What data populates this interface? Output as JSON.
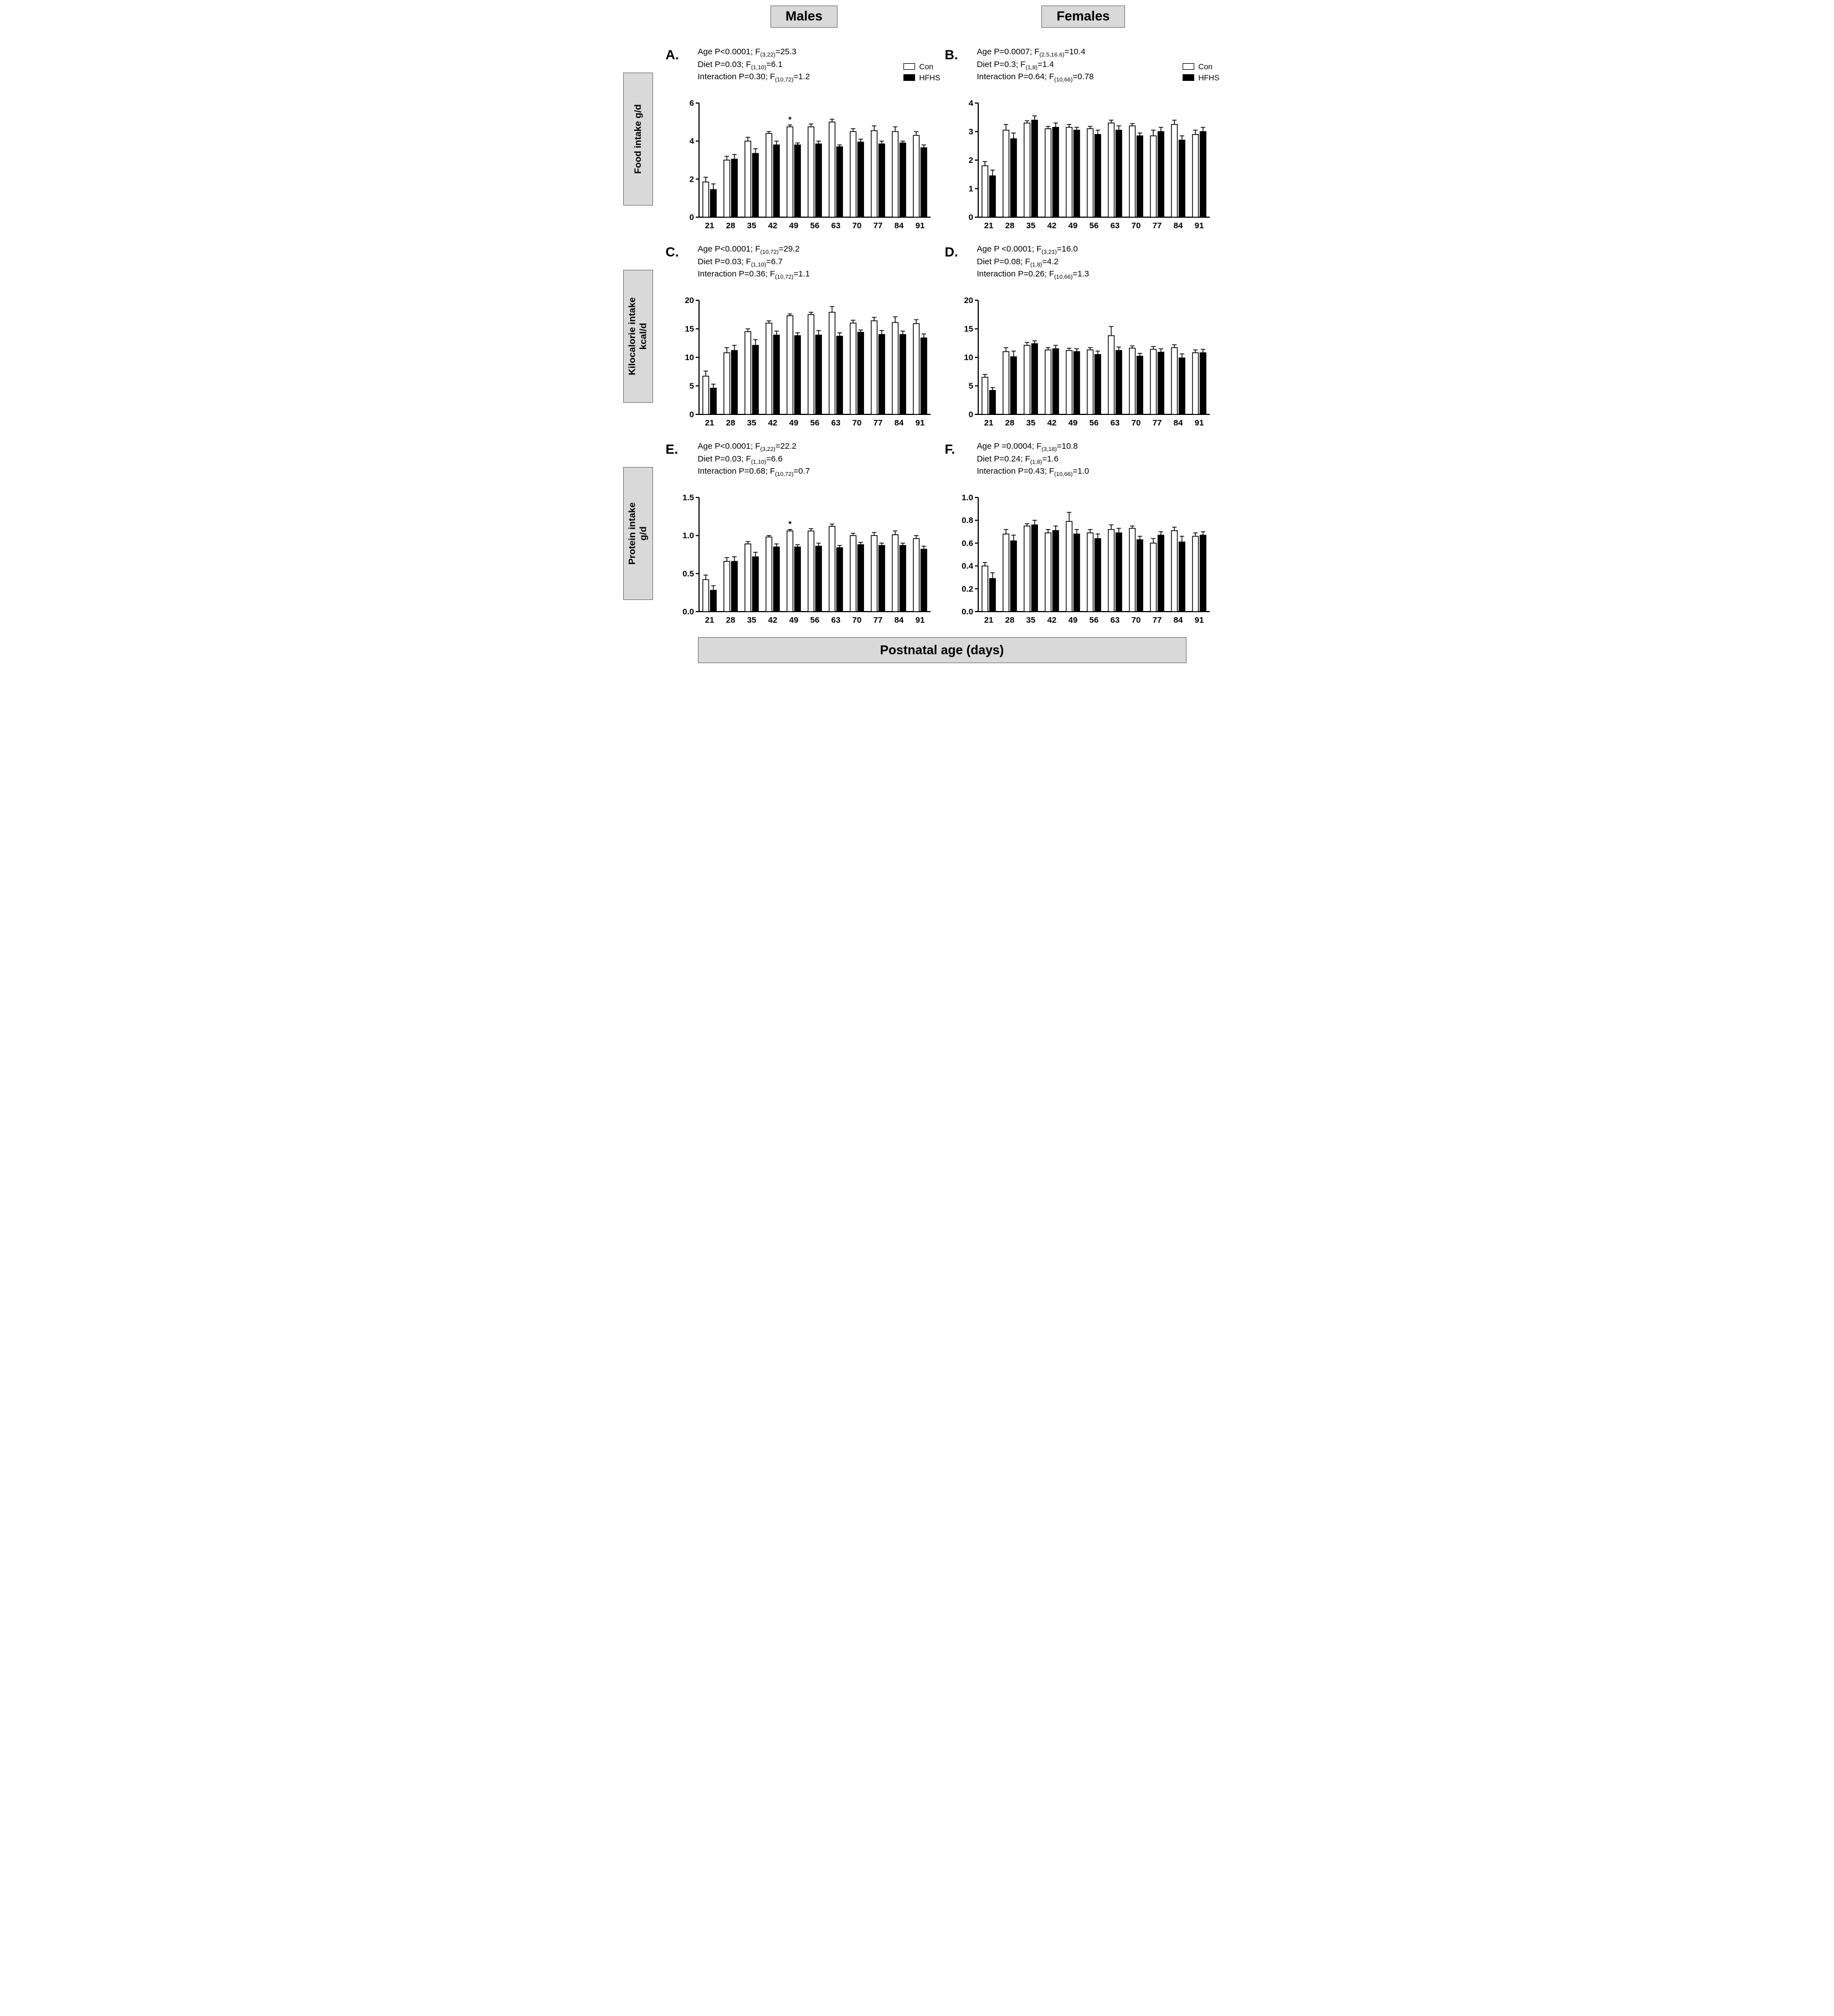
{
  "header": {
    "males_label": "Males",
    "females_label": "Females"
  },
  "footer": {
    "xaxis_label": "Postnatal age (days)"
  },
  "rows": [
    {
      "label_lines": [
        "Food intake g/d",
        ""
      ]
    },
    {
      "label_lines": [
        "Kilocalorie intake",
        "kcal/d"
      ]
    },
    {
      "label_lines": [
        "Protein intake",
        "g/d"
      ]
    }
  ],
  "legend": {
    "items": [
      {
        "label": "Con",
        "color": "#ffffff"
      },
      {
        "label": "HFHS",
        "color": "#000000"
      }
    ]
  },
  "colors": {
    "con_fill": "#ffffff",
    "hfhs_fill": "#000000",
    "bar_stroke": "#000000",
    "label_box_bg": "#d9d9d9",
    "label_box_border": "#6e6e6e"
  },
  "chart_data": [
    {
      "panel": "A.",
      "column": "Males",
      "type": "bar",
      "title": "Males food intake",
      "ylabel": "Food intake g/d",
      "xlabel": "Postnatal age (days)",
      "categories": [
        "21",
        "28",
        "35",
        "42",
        "49",
        "56",
        "63",
        "70",
        "77",
        "84",
        "91"
      ],
      "ylim": [
        0,
        6
      ],
      "ytick_values": [
        0,
        2,
        4,
        6
      ],
      "ytick_labels": [
        "0",
        "2",
        "4",
        "6"
      ],
      "legend_position": "top-right",
      "series": [
        {
          "name": "Con",
          "fill": "#ffffff",
          "values": [
            1.85,
            3.0,
            4.0,
            4.4,
            4.75,
            4.75,
            5.0,
            4.5,
            4.55,
            4.5,
            4.3
          ],
          "errors": [
            0.25,
            0.2,
            0.2,
            0.1,
            0.1,
            0.15,
            0.15,
            0.15,
            0.25,
            0.25,
            0.2
          ]
        },
        {
          "name": "HFHS",
          "fill": "#000000",
          "values": [
            1.45,
            3.05,
            3.35,
            3.8,
            3.8,
            3.85,
            3.7,
            3.95,
            3.85,
            3.9,
            3.65
          ],
          "errors": [
            0.3,
            0.25,
            0.25,
            0.2,
            0.1,
            0.15,
            0.1,
            0.15,
            0.15,
            0.1,
            0.15
          ]
        }
      ],
      "stats": [
        {
          "pre": "Age P<0.0001; F",
          "sub": "(3,22)",
          "post": "=25.3"
        },
        {
          "pre": "Diet P=0.03; F",
          "sub": "(1,10)",
          "post": "=6.1"
        },
        {
          "pre": "Interaction P=0.30; F",
          "sub": "(10,72)",
          "post": "=1.2"
        }
      ],
      "annotations": [
        {
          "series": 0,
          "index": 4,
          "text": "*"
        }
      ]
    },
    {
      "panel": "B.",
      "column": "Females",
      "type": "bar",
      "title": "Females food intake",
      "ylabel": "Food intake g/d",
      "xlabel": "Postnatal age (days)",
      "categories": [
        "21",
        "28",
        "35",
        "42",
        "49",
        "56",
        "63",
        "70",
        "77",
        "84",
        "91"
      ],
      "ylim": [
        0,
        4
      ],
      "ytick_values": [
        0,
        1,
        2,
        3,
        4
      ],
      "ytick_labels": [
        "0",
        "1",
        "2",
        "3",
        "4"
      ],
      "legend_position": "top-right",
      "series": [
        {
          "name": "Con",
          "fill": "#ffffff",
          "values": [
            1.8,
            3.05,
            3.3,
            3.1,
            3.15,
            3.1,
            3.3,
            3.2,
            2.85,
            3.25,
            2.9
          ],
          "errors": [
            0.15,
            0.2,
            0.08,
            0.08,
            0.1,
            0.08,
            0.1,
            0.08,
            0.2,
            0.15,
            0.15
          ]
        },
        {
          "name": "HFHS",
          "fill": "#000000",
          "values": [
            1.45,
            2.75,
            3.4,
            3.15,
            3.05,
            2.9,
            3.05,
            2.85,
            3.0,
            2.7,
            3.0
          ],
          "errors": [
            0.2,
            0.2,
            0.15,
            0.15,
            0.1,
            0.15,
            0.15,
            0.1,
            0.15,
            0.15,
            0.15
          ]
        }
      ],
      "stats": [
        {
          "pre": "Age P=0.0007; F",
          "sub": "(2.5,16.6)",
          "post": "=10.4"
        },
        {
          "pre": "Diet P=0.3; F",
          "sub": "(1,8)",
          "post": "=1.4"
        },
        {
          "pre": "Interaction P=0.64; F",
          "sub": "(10,66)",
          "post": "=0.78"
        }
      ],
      "annotations": []
    },
    {
      "panel": "C.",
      "column": "Males",
      "type": "bar",
      "title": "Males kilocalorie intake",
      "ylabel": "Kilocalorie intake kcal/d",
      "xlabel": "Postnatal age (days)",
      "categories": [
        "21",
        "28",
        "35",
        "42",
        "49",
        "56",
        "63",
        "70",
        "77",
        "84",
        "91"
      ],
      "ylim": [
        0,
        20
      ],
      "ytick_values": [
        0,
        5,
        10,
        15,
        20
      ],
      "ytick_labels": [
        "0",
        "5",
        "10",
        "15",
        "20"
      ],
      "legend_position": "none",
      "series": [
        {
          "name": "Con",
          "fill": "#ffffff",
          "values": [
            6.7,
            10.8,
            14.5,
            16.0,
            17.3,
            17.5,
            17.9,
            16.0,
            16.4,
            16.1,
            15.9
          ],
          "errors": [
            0.9,
            0.9,
            0.5,
            0.4,
            0.3,
            0.4,
            1.0,
            0.5,
            0.6,
            1.0,
            0.7
          ]
        },
        {
          "name": "HFHS",
          "fill": "#000000",
          "values": [
            4.6,
            11.2,
            12.1,
            13.9,
            13.8,
            13.9,
            13.7,
            14.4,
            14.0,
            14.0,
            13.4
          ],
          "errors": [
            0.7,
            0.9,
            1.0,
            0.7,
            0.5,
            0.8,
            0.6,
            0.4,
            0.7,
            0.6,
            0.7
          ]
        }
      ],
      "stats": [
        {
          "pre": "Age P<0.0001; F",
          "sub": "(10,72)",
          "post": "=29.2"
        },
        {
          "pre": "Diet P=0.03; F",
          "sub": "(1,10)",
          "post": "=6.7"
        },
        {
          "pre": "Interaction P=0.36; F",
          "sub": "(10,72)",
          "post": "=1.1"
        }
      ],
      "annotations": []
    },
    {
      "panel": "D.",
      "column": "Females",
      "type": "bar",
      "title": "Females kilocalorie intake",
      "ylabel": "Kilocalorie intake kcal/d",
      "xlabel": "Postnatal age (days)",
      "categories": [
        "21",
        "28",
        "35",
        "42",
        "49",
        "56",
        "63",
        "70",
        "77",
        "84",
        "91"
      ],
      "ylim": [
        0,
        20
      ],
      "ytick_values": [
        0,
        5,
        10,
        15,
        20
      ],
      "ytick_labels": [
        "0",
        "5",
        "10",
        "15",
        "20"
      ],
      "legend_position": "none",
      "series": [
        {
          "name": "Con",
          "fill": "#ffffff",
          "values": [
            6.5,
            11.0,
            12.1,
            11.3,
            11.2,
            11.3,
            13.8,
            11.6,
            11.4,
            11.7,
            10.8
          ],
          "errors": [
            0.5,
            0.7,
            0.5,
            0.4,
            0.4,
            0.4,
            1.6,
            0.4,
            0.5,
            0.5,
            0.5
          ]
        },
        {
          "name": "HFHS",
          "fill": "#000000",
          "values": [
            4.2,
            10.1,
            12.4,
            11.5,
            11.0,
            10.5,
            11.2,
            10.2,
            10.9,
            9.9,
            10.8
          ],
          "errors": [
            0.5,
            1.0,
            0.5,
            0.6,
            0.5,
            0.6,
            0.6,
            0.5,
            0.6,
            0.7,
            0.6
          ]
        }
      ],
      "stats": [
        {
          "pre": "Age P <0.0001; F",
          "sub": "(3,21)",
          "post": "=16.0"
        },
        {
          "pre": "Diet P=0.08; F",
          "sub": "(1,8)",
          "post": "=4.2"
        },
        {
          "pre": "Interaction P=0.26; F",
          "sub": "(10,66)",
          "post": "=1.3"
        }
      ],
      "annotations": []
    },
    {
      "panel": "E.",
      "column": "Males",
      "type": "bar",
      "title": "Males protein intake",
      "ylabel": "Protein intake g/d",
      "xlabel": "Postnatal age (days)",
      "categories": [
        "21",
        "28",
        "35",
        "42",
        "49",
        "56",
        "63",
        "70",
        "77",
        "84",
        "91"
      ],
      "ylim": [
        0,
        1.5
      ],
      "ytick_values": [
        0,
        0.5,
        1.0,
        1.5
      ],
      "ytick_labels": [
        "0.0",
        "0.5",
        "1.0",
        "1.5"
      ],
      "legend_position": "none",
      "series": [
        {
          "name": "Con",
          "fill": "#ffffff",
          "values": [
            0.42,
            0.66,
            0.89,
            0.98,
            1.06,
            1.06,
            1.12,
            1.0,
            1.0,
            1.01,
            0.96
          ],
          "errors": [
            0.06,
            0.05,
            0.03,
            0.02,
            0.02,
            0.03,
            0.03,
            0.03,
            0.04,
            0.05,
            0.04
          ]
        },
        {
          "name": "HFHS",
          "fill": "#000000",
          "values": [
            0.28,
            0.66,
            0.72,
            0.85,
            0.85,
            0.86,
            0.84,
            0.88,
            0.87,
            0.87,
            0.82
          ],
          "errors": [
            0.06,
            0.06,
            0.06,
            0.04,
            0.03,
            0.04,
            0.03,
            0.03,
            0.03,
            0.03,
            0.04
          ]
        }
      ],
      "stats": [
        {
          "pre": "Age P<0.0001; F",
          "sub": "(3,22)",
          "post": "=22.2"
        },
        {
          "pre": "Diet P=0.03; F",
          "sub": "(1,10)",
          "post": "=6.6"
        },
        {
          "pre": "Interaction P=0.68; F",
          "sub": "(10,72)",
          "post": "=0.7"
        }
      ],
      "annotations": [
        {
          "series": 0,
          "index": 4,
          "text": "*"
        }
      ]
    },
    {
      "panel": "F.",
      "column": "Females",
      "type": "bar",
      "title": "Females protein intake",
      "ylabel": "Protein intake g/d",
      "xlabel": "Postnatal age (days)",
      "categories": [
        "21",
        "28",
        "35",
        "42",
        "49",
        "56",
        "63",
        "70",
        "77",
        "84",
        "91"
      ],
      "ylim": [
        0,
        1.0
      ],
      "ytick_values": [
        0,
        0.2,
        0.4,
        0.6,
        0.8,
        1.0
      ],
      "ytick_labels": [
        "0.0",
        "0.2",
        "0.4",
        "0.6",
        "0.8",
        "1.0"
      ],
      "legend_position": "none",
      "series": [
        {
          "name": "Con",
          "fill": "#ffffff",
          "values": [
            0.4,
            0.68,
            0.75,
            0.69,
            0.79,
            0.69,
            0.72,
            0.73,
            0.6,
            0.71,
            0.66
          ],
          "errors": [
            0.03,
            0.04,
            0.02,
            0.03,
            0.08,
            0.03,
            0.04,
            0.02,
            0.04,
            0.03,
            0.03
          ]
        },
        {
          "name": "HFHS",
          "fill": "#000000",
          "values": [
            0.29,
            0.62,
            0.76,
            0.71,
            0.68,
            0.64,
            0.69,
            0.63,
            0.67,
            0.61,
            0.67
          ],
          "errors": [
            0.05,
            0.05,
            0.04,
            0.04,
            0.04,
            0.04,
            0.04,
            0.03,
            0.03,
            0.05,
            0.03
          ]
        }
      ],
      "stats": [
        {
          "pre": "Age P =0.0004; F",
          "sub": "(3,18)",
          "post": "=10.8"
        },
        {
          "pre": "Diet P=0.24; F",
          "sub": "(1,8)",
          "post": "=1.6"
        },
        {
          "pre": "Interaction P=0.43; F",
          "sub": "(10,66)",
          "post": "=1.0"
        }
      ],
      "annotations": []
    }
  ]
}
